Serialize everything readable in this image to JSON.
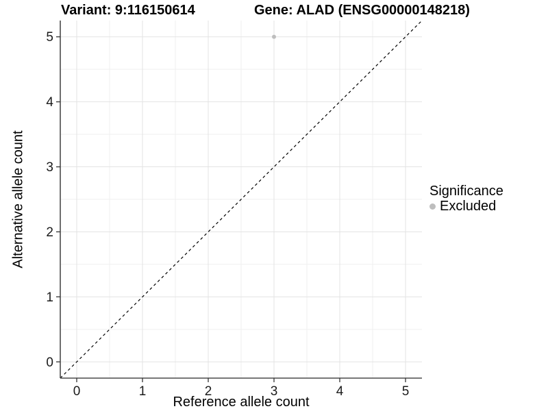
{
  "chart_data": {
    "type": "scatter",
    "titles": {
      "left": "Variant: 9:116150614",
      "right": "Gene: ALAD (ENSG00000148218)"
    },
    "xlabel": "Reference allele count",
    "ylabel": "Alternative allele count",
    "xlim": [
      -0.25,
      5.25
    ],
    "ylim": [
      -0.25,
      5.25
    ],
    "x_ticks": [
      0,
      1,
      2,
      3,
      4,
      5
    ],
    "y_ticks": [
      0,
      1,
      2,
      3,
      4,
      5
    ],
    "minor_grid_step": 0.5,
    "grid": true,
    "points": [
      {
        "x": 3,
        "y": 5,
        "series": "Excluded",
        "color": "#bebebe"
      }
    ],
    "reference_line": {
      "slope": 1,
      "intercept": 0,
      "style": "dashed",
      "color": "#000000"
    },
    "legend": {
      "title": "Significance",
      "position": "right",
      "entries": [
        {
          "label": "Excluded",
          "color": "#bebebe",
          "marker": "circle"
        }
      ]
    },
    "colors": {
      "background": "#ffffff",
      "grid_major": "#e3e3e3",
      "grid_minor": "#efefef",
      "axis_line": "#4a4a4a",
      "tick_mark": "#333333",
      "tick_label": "#1a1a1a",
      "point": "#bebebe",
      "text": "#000000"
    }
  }
}
